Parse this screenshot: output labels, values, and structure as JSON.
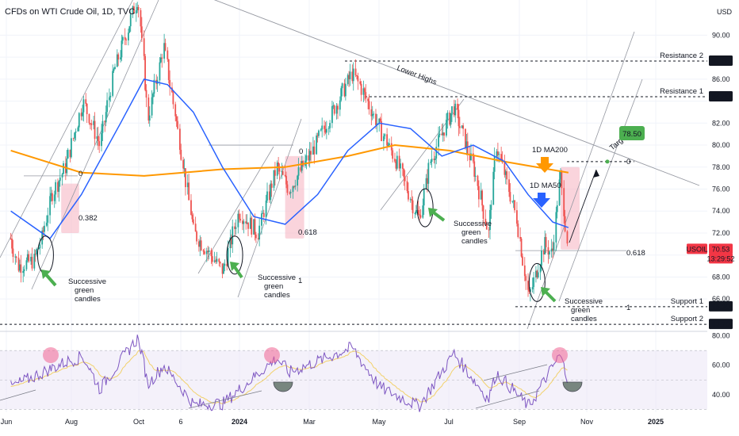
{
  "header": {
    "symbol_title": "CFDs on WTI Crude Oil, 1D, TVC",
    "currency": "USD"
  },
  "colors": {
    "up": "#26a69a",
    "down": "#ef5350",
    "ma50": "#2962ff",
    "ma200": "#ff9800",
    "rsi": "#7e57c2",
    "rsi_ma": "#f2d16b",
    "label_dark": "#131722",
    "label_red": "#f23645",
    "label_green": "#4caf50"
  },
  "chart_data": [
    {
      "type": "candlestick",
      "title": "CFDs on WTI Crude Oil, 1D, TVC",
      "ylabel": "USD",
      "ylim": [
        63.2,
        93.2
      ],
      "y_ticks": [
        90.0,
        88.0,
        86.0,
        84.0,
        82.0,
        80.0,
        78.0,
        76.0,
        74.0,
        72.0,
        70.0,
        68.0,
        66.0
      ],
      "x_ticks": [
        "Jun",
        "Aug",
        "Oct",
        "6",
        "2024",
        "Mar",
        "May",
        "Jul",
        "Sep",
        "Nov",
        "2025"
      ],
      "close_path": [
        [
          "Jun 5 2023",
          71.5
        ],
        [
          "Jun 12 2023",
          69.0
        ],
        [
          "Jun 26 2023",
          69.5
        ],
        [
          "Jul 3 2023",
          71.5
        ],
        [
          "Jul 12 2023",
          75.5
        ],
        [
          "Jul 24 2023",
          78.0
        ],
        [
          "Aug 9 2023",
          84.0
        ],
        [
          "Aug 24 2023",
          80.0
        ],
        [
          "Sep 5 2023",
          86.5
        ],
        [
          "Sep 27 2023",
          93.5
        ],
        [
          "Oct 6 2023",
          82.5
        ],
        [
          "Oct 20 2023",
          89.0
        ],
        [
          "Nov 3 2023",
          80.5
        ],
        [
          "Nov 16 2023",
          72.0
        ],
        [
          "Dec 12 2023",
          68.5
        ],
        [
          "Dec 26 2023",
          74.0
        ],
        [
          "Jan 12 2024",
          72.0
        ],
        [
          "Jan 29 2024",
          78.0
        ],
        [
          "Feb 9 2024",
          76.0
        ],
        [
          "Mar 1 2024",
          79.5
        ],
        [
          "Apr 5 2024",
          86.5
        ],
        [
          "Apr 12 2024",
          85.5
        ],
        [
          "Apr 30 2024",
          81.5
        ],
        [
          "May 15 2024",
          78.5
        ],
        [
          "Jun 4 2024",
          73.2
        ],
        [
          "Jun 14 2024",
          78.5
        ],
        [
          "Jul 5 2024",
          83.5
        ],
        [
          "Jul 24 2024",
          77.5
        ],
        [
          "Aug 5 2024",
          72.0
        ],
        [
          "Aug 12 2024",
          80.0
        ],
        [
          "Aug 30 2024",
          73.5
        ],
        [
          "Sep 10 2024",
          66.0
        ],
        [
          "Sep 24 2024",
          71.0
        ],
        [
          "Oct 1 2024",
          70.0
        ],
        [
          "Oct 8 2024",
          77.5
        ],
        [
          "Oct 15 2024",
          70.5
        ]
      ],
      "series": [
        {
          "name": "USOIL",
          "last": 70.53
        },
        {
          "name": "1D MA50",
          "values": [
            [
              "Jun 5 2023",
              74.0
            ],
            [
              "Jul 10 2023",
              71.5
            ],
            [
              "Aug 7 2023",
              75.5
            ],
            [
              "Sep 11 2023",
              82.0
            ],
            [
              "Oct 2 2023",
              86.0
            ],
            [
              "Oct 23 2023",
              85.5
            ],
            [
              "Nov 15 2023",
              83.0
            ],
            [
              "Dec 11 2023",
              78.0
            ],
            [
              "Jan 8 2024",
              73.5
            ],
            [
              "Feb 5 2024",
              72.8
            ],
            [
              "Mar 5 2024",
              75.5
            ],
            [
              "Apr 1 2024",
              79.5
            ],
            [
              "Apr 29 2024",
              82.0
            ],
            [
              "May 27 2024",
              81.5
            ],
            [
              "Jun 24 2024",
              79.0
            ],
            [
              "Jul 22 2024",
              80.0
            ],
            [
              "Aug 19 2024",
              78.5
            ],
            [
              "Sep 9 2024",
              75.5
            ],
            [
              "Oct 1 2024",
              73.0
            ],
            [
              "Oct 15 2024",
              72.5
            ]
          ]
        },
        {
          "name": "1D MA200",
          "values": [
            [
              "Jun 5 2023",
              79.5
            ],
            [
              "Aug 7 2023",
              77.5
            ],
            [
              "Oct 2 2023",
              77.2
            ],
            [
              "Dec 11 2023",
              77.8
            ],
            [
              "Feb 5 2024",
              78.0
            ],
            [
              "Apr 1 2024",
              79.0
            ],
            [
              "May 13 2024",
              80.0
            ],
            [
              "Jul 1 2024",
              79.5
            ],
            [
              "Aug 19 2024",
              78.5
            ],
            [
              "Oct 15 2024",
              77.5
            ]
          ]
        }
      ],
      "price_labels": [
        {
          "text": "87.65",
          "value": 87.65,
          "style": "dark"
        },
        {
          "text": "84.40",
          "value": 84.4,
          "style": "dark"
        },
        {
          "text": "USOIL",
          "value": 70.53,
          "style": "red"
        },
        {
          "text": "70.53",
          "value": 70.53,
          "style": "red"
        },
        {
          "text": "13:29:52",
          "value": 70.53,
          "style": "red"
        },
        {
          "text": "65.30",
          "value": 65.3,
          "style": "dark"
        },
        {
          "text": "63.70",
          "value": 63.7,
          "style": "dark"
        }
      ],
      "levels": [
        {
          "label": "Resistance 2",
          "value": 87.65
        },
        {
          "label": "Resistance 1",
          "value": 84.4
        },
        {
          "label": "Support 1",
          "value": 65.3
        },
        {
          "label": "Support 2",
          "value": 63.7
        }
      ],
      "annotations": {
        "lower_highs": "Lower Highs",
        "ma200_label": "1D MA200",
        "ma50_label": "1D MA50",
        "target_label": "Target",
        "target_value": "78.50",
        "successive": [
          "Successive",
          "green",
          "candles"
        ],
        "fib_labels": [
          "0",
          "0.382",
          "0",
          "0.618",
          "1",
          "0",
          "0.618",
          "1",
          "0"
        ]
      }
    },
    {
      "type": "line",
      "ylabel": "RSI",
      "ylim": [
        28,
        82
      ],
      "y_ticks": [
        80.0,
        60.0,
        40.0
      ],
      "series": [
        {
          "name": "RSI",
          "values": [
            [
              "Jun 5 2023",
              45
            ],
            [
              "Jul 24 2023",
              62
            ],
            [
              "Aug 9 2023",
              66
            ],
            [
              "Aug 24 2023",
              44
            ],
            [
              "Sep 27 2023",
              79
            ],
            [
              "Oct 6 2023",
              47
            ],
            [
              "Oct 20 2023",
              60
            ],
            [
              "Nov 16 2023",
              33
            ],
            [
              "Dec 12 2023",
              34
            ],
            [
              "Jan 29 2024",
              65
            ],
            [
              "Feb 9 2024",
              55
            ],
            [
              "Apr 5 2024",
              72
            ],
            [
              "Apr 30 2024",
              45
            ],
            [
              "Jun 4 2024",
              32
            ],
            [
              "Jul 5 2024",
              68
            ],
            [
              "Aug 5 2024",
              37
            ],
            [
              "Aug 12 2024",
              55
            ],
            [
              "Sep 10 2024",
              32
            ],
            [
              "Oct 8 2024",
              67
            ],
            [
              "Oct 15 2024",
              50
            ]
          ]
        }
      ]
    }
  ]
}
